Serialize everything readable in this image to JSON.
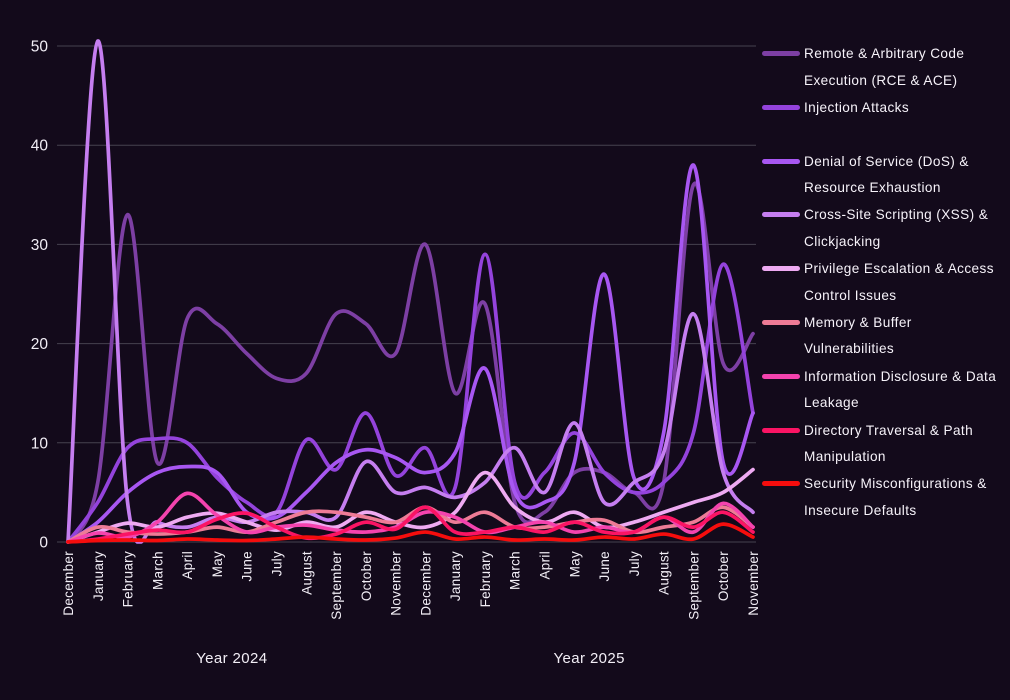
{
  "page": {
    "background_color": "#130a1b",
    "grid_color": "#46424f",
    "text_color": "#f2eef6"
  },
  "chart_data": {
    "type": "line",
    "title": "",
    "xlabel": "",
    "ylabel": "",
    "grid": true,
    "legend_position": "right",
    "smoothing": "spline",
    "ylim": [
      0,
      52
    ],
    "y_ticks": [
      0,
      10,
      20,
      30,
      40,
      50
    ],
    "x_categories": [
      "December",
      "January",
      "February",
      "March",
      "April",
      "May",
      "June",
      "July",
      "August",
      "September",
      "October",
      "November",
      "December",
      "January",
      "February",
      "March",
      "April",
      "May",
      "June",
      "July",
      "August",
      "September",
      "October",
      "November"
    ],
    "x_group_labels": [
      {
        "label": "Year 2024",
        "start_index": 0,
        "end_index": 11
      },
      {
        "label": "Year 2025",
        "start_index": 12,
        "end_index": 23
      }
    ],
    "series": [
      {
        "name": "Remote & Arbitrary Code Execution (RCE & ACE)",
        "color": "#7d3fa4",
        "values": [
          0,
          6,
          33,
          8,
          22.5,
          22,
          19,
          16.5,
          17,
          23,
          22,
          19,
          30,
          15,
          24,
          4,
          3,
          7,
          7,
          5,
          6,
          36,
          18,
          21
        ]
      },
      {
        "name": "Injection Attacks",
        "color": "#9443dc",
        "values": [
          0,
          4,
          9.5,
          10.4,
          10,
          6.5,
          4,
          3,
          10.3,
          7.3,
          13,
          6.7,
          9.5,
          5.5,
          29,
          6,
          7,
          11,
          7,
          5,
          6,
          11,
          28,
          13
        ]
      },
      {
        "name": "Denial of Service (DoS) & Resource Exhaustion",
        "color": "#a857f2",
        "values": [
          0,
          2,
          5,
          7,
          7.6,
          7,
          3,
          2.5,
          5,
          8,
          9.3,
          8.5,
          7,
          9,
          17.5,
          5,
          4,
          8,
          27,
          6.5,
          11,
          38,
          8,
          13
        ]
      },
      {
        "name": "Cross-Site Scripting (XSS) & Clickjacking",
        "color": "#c57ef0",
        "values": [
          0,
          50.5,
          4,
          2,
          1.5,
          2.5,
          2,
          3,
          3,
          2.5,
          8.1,
          5,
          5.5,
          4.5,
          6,
          9.5,
          5,
          12,
          4,
          6,
          9,
          23,
          7,
          3
        ]
      },
      {
        "name": "Privilege Escalation & Access Control Issues",
        "color": "#eeaaf2",
        "values": [
          0,
          1,
          1.9,
          1.5,
          2.5,
          2.9,
          2,
          1.2,
          2,
          1.5,
          3,
          2,
          1.5,
          3,
          7,
          3.5,
          2,
          3,
          1.5,
          2,
          3,
          4,
          5,
          7.3
        ]
      },
      {
        "name": "Memory & Buffer Vulnerabilities",
        "color": "#ee7b96",
        "values": [
          0,
          1.5,
          1,
          0.8,
          1,
          1.5,
          1,
          2,
          3,
          3,
          2.5,
          2,
          3.5,
          2,
          3,
          1.5,
          1.5,
          2,
          2.2,
          1,
          1.5,
          2,
          3.5,
          1.5
        ]
      },
      {
        "name": "Information Disclosure & Data Leakage",
        "color": "#f443ae",
        "values": [
          0,
          0.9,
          0.5,
          2,
          4.9,
          2.7,
          1,
          1.5,
          1.7,
          1.2,
          1,
          1.5,
          3,
          2.5,
          1,
          1.5,
          2,
          1,
          1.5,
          1,
          2.5,
          1,
          3.9,
          1.5
        ]
      },
      {
        "name": "Directory Traversal & Path Manipulation",
        "color": "#fb1464",
        "values": [
          0,
          0.3,
          0.8,
          1.2,
          1,
          2.3,
          2.9,
          1.5,
          0.4,
          0.8,
          2,
          1.3,
          3.5,
          1,
          1,
          1.5,
          1,
          2,
          1,
          1,
          2.5,
          1.5,
          3,
          1
        ]
      },
      {
        "name": "Security Misconfigurations & Insecure Defaults",
        "color": "#f50d0d",
        "values": [
          0,
          0.15,
          0.2,
          0.15,
          0.3,
          0.2,
          0.15,
          0.3,
          0.5,
          0.3,
          0.2,
          0.4,
          1,
          0.3,
          0.5,
          0.2,
          0.3,
          0.2,
          0.5,
          0.3,
          0.8,
          0.3,
          1.8,
          0.5
        ]
      }
    ]
  }
}
